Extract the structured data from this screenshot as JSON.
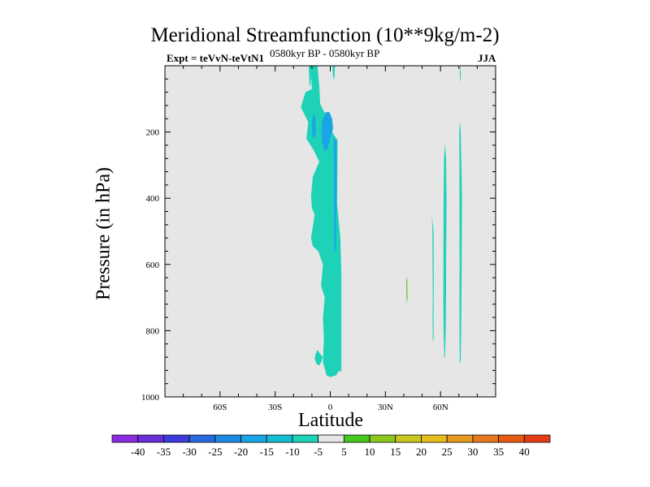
{
  "header": {
    "title": "Meridional Streamfunction (10**9kg/m-2)",
    "experiment": "Expt = teVvN-teVtN1",
    "period": "0580kyr BP - 0580kyr BP",
    "season": "JJA"
  },
  "chart_data": {
    "type": "heatmap",
    "title": "Meridional Streamfunction (10**9kg/m-2)",
    "xlabel": "Latitude",
    "ylabel": "Pressure (in hPa)",
    "xlim": [
      -90,
      90
    ],
    "ylim": [
      1000,
      0
    ],
    "y_inverted": true,
    "x_ticks": [
      {
        "value": -60,
        "label": "60S"
      },
      {
        "value": -30,
        "label": "30S"
      },
      {
        "value": 0,
        "label": "0"
      },
      {
        "value": 30,
        "label": "30N"
      },
      {
        "value": 60,
        "label": "60N"
      }
    ],
    "y_ticks": [
      {
        "value": 200,
        "label": "200"
      },
      {
        "value": 400,
        "label": "400"
      },
      {
        "value": 600,
        "label": "600"
      },
      {
        "value": 800,
        "label": "800"
      },
      {
        "value": 1000,
        "label": "1000"
      }
    ],
    "background_color": "#e6e6e6",
    "colorbar": {
      "labels": [
        "-40",
        "-35",
        "-30",
        "-25",
        "-20",
        "-15",
        "-10",
        "-5",
        "5",
        "10",
        "15",
        "20",
        "25",
        "30",
        "35",
        "40"
      ],
      "colors": [
        "#8a2be2",
        "#6a2ed8",
        "#3c3cdc",
        "#2a6ae0",
        "#1e8ae6",
        "#1aa5e6",
        "#14bed2",
        "#1ed2b8",
        "#e6e6e6",
        "#46c81e",
        "#8cc81e",
        "#c8c81e",
        "#e6be1e",
        "#e69a1e",
        "#e6781e",
        "#e65a14",
        "#e63c14"
      ]
    },
    "regions": [
      {
        "level": -10,
        "color": "#1ed2b8",
        "points": [
          [
            -10.5,
            30
          ],
          [
            -11,
            0
          ],
          [
            -7,
            0
          ],
          [
            -6,
            60
          ],
          [
            -5.5,
            115
          ],
          [
            -2,
            155
          ],
          [
            1.5,
            205
          ],
          [
            4,
            225
          ],
          [
            3.7,
            415
          ],
          [
            5.5,
            520
          ],
          [
            6,
            620
          ],
          [
            6,
            760
          ],
          [
            6,
            835
          ],
          [
            6,
            925
          ],
          [
            5,
            920
          ],
          [
            3,
            935
          ],
          [
            0,
            940
          ],
          [
            -2,
            935
          ],
          [
            -4,
            895
          ],
          [
            -3.5,
            820
          ],
          [
            -4,
            760
          ],
          [
            -3,
            700
          ],
          [
            -5,
            665
          ],
          [
            -4,
            600
          ],
          [
            -6.5,
            560
          ],
          [
            -9.5,
            545
          ],
          [
            -10.5,
            520
          ],
          [
            -8.5,
            450
          ],
          [
            -10,
            430
          ],
          [
            -10.5,
            395
          ],
          [
            -9.5,
            335
          ],
          [
            -6,
            290
          ],
          [
            -9,
            255
          ],
          [
            -13,
            220
          ],
          [
            -12,
            170
          ],
          [
            -16,
            125
          ],
          [
            -13.5,
            80
          ],
          [
            -10,
            70
          ]
        ]
      },
      {
        "level": -10,
        "color": "#1ed2b8",
        "points": [
          [
            -7,
            858
          ],
          [
            -5.5,
            870
          ],
          [
            -4,
            880
          ],
          [
            -5,
            895
          ],
          [
            -6,
            905
          ],
          [
            -7.5,
            900
          ],
          [
            -8.5,
            885
          ],
          [
            -8,
            870
          ]
        ]
      },
      {
        "level": -10,
        "color": "#1ed2b8",
        "points": [
          [
            55.3,
            450
          ],
          [
            56.2,
            500
          ],
          [
            56.3,
            600
          ],
          [
            56.3,
            700
          ],
          [
            56.2,
            760
          ],
          [
            56.2,
            830
          ],
          [
            55.8,
            830
          ],
          [
            55.7,
            760
          ],
          [
            55.8,
            700
          ],
          [
            55.7,
            600
          ],
          [
            55.6,
            500
          ]
        ]
      },
      {
        "level": -10,
        "color": "#1ed2b8",
        "points": [
          [
            62.5,
            235
          ],
          [
            63,
            280
          ],
          [
            63.3,
            400
          ],
          [
            63.2,
            500
          ],
          [
            63,
            600
          ],
          [
            63,
            700
          ],
          [
            62.8,
            800
          ],
          [
            62.5,
            880
          ],
          [
            62.1,
            880
          ],
          [
            61.7,
            800
          ],
          [
            61.5,
            700
          ],
          [
            61.6,
            600
          ],
          [
            61.6,
            500
          ],
          [
            61.7,
            400
          ],
          [
            61.9,
            280
          ]
        ]
      },
      {
        "level": -10,
        "color": "#1ed2b8",
        "points": [
          [
            70.5,
            165
          ],
          [
            71,
            200
          ],
          [
            71.4,
            300
          ],
          [
            71.7,
            400
          ],
          [
            71.6,
            500
          ],
          [
            71.5,
            600
          ],
          [
            71.4,
            700
          ],
          [
            71.2,
            800
          ],
          [
            71,
            895
          ],
          [
            70.5,
            895
          ],
          [
            70.3,
            800
          ],
          [
            70.3,
            700
          ],
          [
            70.4,
            600
          ],
          [
            70.3,
            500
          ],
          [
            70.3,
            400
          ],
          [
            70.3,
            300
          ],
          [
            70.2,
            200
          ]
        ]
      },
      {
        "level": -10,
        "color": "#1ed2b8",
        "points": [
          [
            70.8,
            0
          ],
          [
            71,
            20
          ],
          [
            70.9,
            45
          ],
          [
            70.6,
            45
          ],
          [
            70.5,
            20
          ],
          [
            70.6,
            0
          ]
        ]
      },
      {
        "level": -10,
        "color": "#1ed2b8",
        "points": [
          [
            -11.7,
            0
          ],
          [
            -10.7,
            0
          ],
          [
            -10.4,
            30
          ],
          [
            -10.9,
            60
          ],
          [
            -11.3,
            60
          ],
          [
            -11.5,
            30
          ]
        ]
      },
      {
        "level": -10,
        "color": "#1ed2b8",
        "points": [
          [
            1.2,
            0
          ],
          [
            2.6,
            0
          ],
          [
            2.3,
            30
          ],
          [
            1.9,
            45
          ],
          [
            1.5,
            30
          ]
        ]
      },
      {
        "level": -15,
        "color": "#1aa5e6",
        "points": [
          [
            -2.5,
            140
          ],
          [
            -0.5,
            140
          ],
          [
            1,
            160
          ],
          [
            1.5,
            190
          ],
          [
            0,
            220
          ],
          [
            -1.5,
            250
          ],
          [
            -3,
            260
          ],
          [
            -4.5,
            230
          ],
          [
            -4.8,
            200
          ],
          [
            -4.2,
            165
          ]
        ]
      },
      {
        "level": -15,
        "color": "#1aa5e6",
        "points": [
          [
            1.8,
            220
          ],
          [
            3.4,
            225
          ],
          [
            3.5,
            350
          ],
          [
            3.1,
            560
          ],
          [
            2.3,
            560
          ],
          [
            2.1,
            350
          ]
        ]
      },
      {
        "level": -15,
        "color": "#1aa5e6",
        "points": [
          [
            -9.5,
            150
          ],
          [
            -8.2,
            150
          ],
          [
            -7.8,
            200
          ],
          [
            -8.6,
            220
          ],
          [
            -9.8,
            210
          ],
          [
            -10,
            180
          ]
        ]
      },
      {
        "level": 5,
        "color": "#46c81e",
        "points": [
          [
            41.6,
            635
          ],
          [
            41.9,
            650
          ],
          [
            42,
            700
          ],
          [
            41.8,
            720
          ],
          [
            41.5,
            700
          ],
          [
            41.4,
            650
          ]
        ]
      }
    ]
  }
}
